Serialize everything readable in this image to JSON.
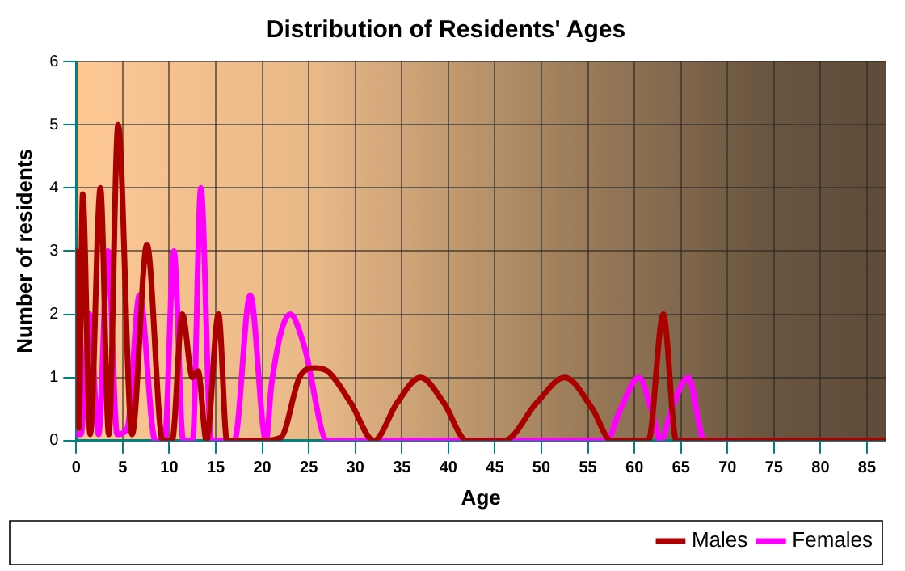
{
  "chart_data": {
    "type": "line",
    "title": "Distribution of Residents' Ages",
    "xlabel": "Age",
    "ylabel": "Number of residents",
    "xlim": [
      0,
      87
    ],
    "xticks": [
      0,
      5,
      10,
      15,
      20,
      25,
      30,
      35,
      40,
      45,
      50,
      55,
      60,
      65,
      70,
      75,
      80,
      85
    ],
    "ylim": [
      0,
      6
    ],
    "yticks": [
      0,
      1,
      2,
      3,
      4,
      5,
      6
    ],
    "grid": true,
    "legend": "bottom right",
    "marker": "none",
    "series": [
      {
        "name": "Males",
        "color": "#aa0000",
        "x": [
          0,
          0.3,
          0.7,
          1.5,
          2.6,
          3.5,
          4.5,
          6,
          7.6,
          9.3,
          10.3,
          11.4,
          12.5,
          13.1,
          14,
          15.3,
          16.2,
          20,
          22,
          24,
          25.6,
          27,
          29.5,
          32,
          34.5,
          37,
          39.5,
          42,
          46,
          49.5,
          52.5,
          55.5,
          57.5,
          61.5,
          63.1,
          64.5,
          87
        ],
        "values": [
          3,
          0.2,
          3.9,
          0.1,
          4,
          0.1,
          5,
          0.1,
          3.1,
          0,
          0,
          2,
          1,
          1.1,
          0,
          2,
          0,
          0,
          0.05,
          1,
          1.15,
          1.1,
          0.6,
          0,
          0.6,
          1,
          0.6,
          0,
          0,
          0.6,
          1,
          0.5,
          0,
          0,
          2,
          0,
          0
        ]
      },
      {
        "name": "Females",
        "color": "#ff00ff",
        "x": [
          0,
          0.5,
          1.4,
          2.4,
          3.4,
          4.4,
          5.5,
          6.8,
          8.5,
          9.5,
          10.5,
          11.5,
          12.5,
          13.4,
          14.5,
          17,
          18.7,
          20.4,
          21,
          23,
          24.5,
          27,
          57,
          58.5,
          60.5,
          61.8,
          62.8,
          64,
          65.8,
          67.5,
          70
        ],
        "values": [
          0.1,
          0.1,
          2,
          0.1,
          3,
          0.1,
          0.2,
          2.3,
          0,
          0,
          3,
          0,
          0,
          4,
          0,
          0,
          2.3,
          0,
          0.9,
          2,
          1.5,
          0,
          0,
          0.5,
          1,
          0.5,
          0,
          0.5,
          1,
          0,
          0
        ]
      }
    ]
  }
}
